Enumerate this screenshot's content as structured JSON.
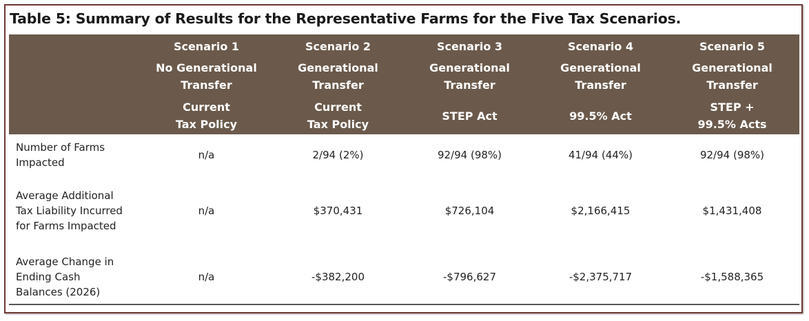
{
  "title": "Table 5: Summary of Results for the Representative Farms for the Five Tax Scenarios.",
  "columns": [
    {
      "scenario": "Scenario 1",
      "transfer": "No Generational Transfer",
      "policy": "Current Tax Policy"
    },
    {
      "scenario": "Scenario 2",
      "transfer": "Generational Transfer",
      "policy": "Current Tax Policy"
    },
    {
      "scenario": "Scenario 3",
      "transfer": "Generational Transfer",
      "policy": "STEP Act"
    },
    {
      "scenario": "Scenario 4",
      "transfer": "Generational Transfer",
      "policy": "99.5% Act"
    },
    {
      "scenario": "Scenario 5",
      "transfer": "Generational Transfer",
      "policy": "STEP + 99.5% Acts"
    }
  ],
  "rows": [
    {
      "label": "Number of Farms Impacted",
      "values": [
        "n/a",
        "2/94 (2%)",
        "92/94 (98%)",
        "41/94 (44%)",
        "92/94 (98%)"
      ]
    },
    {
      "label": "Average Additional Tax Liability Incurred for Farms Impacted",
      "values": [
        "n/a",
        "$370,431",
        "$726,104",
        "$2,166,415",
        "$1,431,408"
      ]
    },
    {
      "label": "Average Change in Ending Cash Balances (2026)",
      "values": [
        "n/a",
        "-$382,200",
        "-$796,627",
        "-$2,375,717",
        "-$1,588,365"
      ]
    }
  ],
  "colors": {
    "header_bg": "#6b5a4b",
    "border": "#6e3a34"
  }
}
